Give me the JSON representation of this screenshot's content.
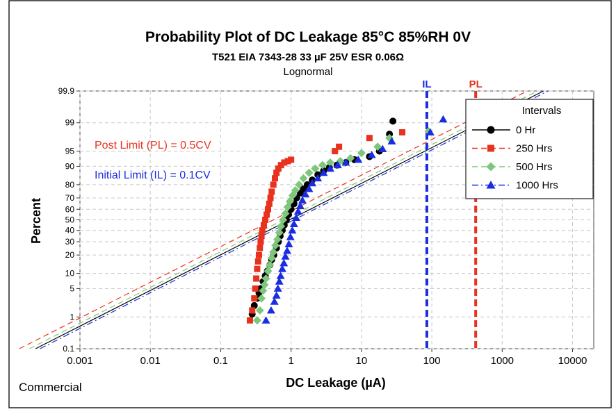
{
  "chart_data": {
    "type": "scatter",
    "title": "Probability Plot of DC Leakage 85°C 85%RH 0V",
    "subtitle": "T521 EIA 7343-28 33 µF 25V ESR 0.06Ω",
    "distribution": "Lognormal",
    "xlabel": "DC Leakage (µA)",
    "ylabel": "Percent",
    "x_scale": "log",
    "y_scale": "probability (normal)",
    "xlim": [
      0.001,
      20000
    ],
    "ylim": [
      0.1,
      99.9
    ],
    "x_ticks": [
      0.001,
      0.01,
      0.1,
      1,
      10,
      100,
      1000,
      10000
    ],
    "x_tick_labels": [
      "0.001",
      "0.01",
      "0.1",
      "1",
      "10",
      "100",
      "1000",
      "10000"
    ],
    "y_ticks": [
      0.1,
      1,
      5,
      10,
      20,
      30,
      40,
      50,
      60,
      70,
      80,
      90,
      95,
      99,
      99.9
    ],
    "y_tick_labels": [
      "0.1",
      "1",
      "5",
      "10",
      "20",
      "30",
      "40",
      "50",
      "60",
      "70",
      "80",
      "90",
      "95",
      "99",
      "99.9"
    ],
    "grid": true,
    "legend_title": "Intervals",
    "legend_position": "top-right",
    "series": [
      {
        "name": "0 Hr",
        "color": "#000000",
        "marker": "circle",
        "line": "solid",
        "fit": {
          "median": 0.95,
          "sigma": 1.17
        },
        "points": [
          [
            0.28,
            1.2
          ],
          [
            0.3,
            2
          ],
          [
            0.33,
            3
          ],
          [
            0.35,
            4
          ],
          [
            0.37,
            5
          ],
          [
            0.4,
            7
          ],
          [
            0.43,
            9
          ],
          [
            0.46,
            11
          ],
          [
            0.5,
            14
          ],
          [
            0.53,
            17
          ],
          [
            0.57,
            20
          ],
          [
            0.62,
            25
          ],
          [
            0.66,
            30
          ],
          [
            0.7,
            35
          ],
          [
            0.75,
            40
          ],
          [
            0.8,
            45
          ],
          [
            0.86,
            50
          ],
          [
            0.92,
            55
          ],
          [
            1.0,
            60
          ],
          [
            1.1,
            65
          ],
          [
            1.2,
            70
          ],
          [
            1.35,
            74
          ],
          [
            1.5,
            77
          ],
          [
            1.7,
            80
          ],
          [
            2.0,
            83
          ],
          [
            2.4,
            86
          ],
          [
            2.9,
            88
          ],
          [
            3.5,
            89.5
          ],
          [
            4.5,
            90.5
          ],
          [
            6,
            91.5
          ],
          [
            8,
            92.5
          ],
          [
            13,
            93.5
          ],
          [
            18,
            95
          ],
          [
            25,
            98
          ],
          [
            28,
            99.1
          ]
        ]
      },
      {
        "name": "250 Hrs",
        "color": "#e8321e",
        "marker": "square",
        "line": "dashed",
        "fit": {
          "median": 0.56,
          "sigma": 1.17
        },
        "points": [
          [
            0.26,
            0.8
          ],
          [
            0.28,
            1.5
          ],
          [
            0.3,
            3
          ],
          [
            0.31,
            5
          ],
          [
            0.32,
            8
          ],
          [
            0.33,
            12
          ],
          [
            0.34,
            16
          ],
          [
            0.35,
            20
          ],
          [
            0.36,
            25
          ],
          [
            0.37,
            30
          ],
          [
            0.38,
            35
          ],
          [
            0.39,
            40
          ],
          [
            0.41,
            45
          ],
          [
            0.43,
            50
          ],
          [
            0.45,
            55
          ],
          [
            0.47,
            60
          ],
          [
            0.49,
            65
          ],
          [
            0.51,
            70
          ],
          [
            0.53,
            75
          ],
          [
            0.56,
            80
          ],
          [
            0.59,
            84
          ],
          [
            0.62,
            87
          ],
          [
            0.66,
            89
          ],
          [
            0.72,
            90.5
          ],
          [
            0.8,
            91.5
          ],
          [
            0.9,
            92
          ],
          [
            1.0,
            92.5
          ],
          [
            4.2,
            95
          ],
          [
            4.8,
            96
          ],
          [
            13,
            97.5
          ],
          [
            38,
            98.2
          ]
        ]
      },
      {
        "name": "500 Hrs",
        "color": "#7dc67a",
        "marker": "diamond",
        "line": "dashed",
        "fit": {
          "median": 0.78,
          "sigma": 1.17
        },
        "points": [
          [
            0.33,
            0.8
          ],
          [
            0.36,
            1.5
          ],
          [
            0.38,
            3
          ],
          [
            0.4,
            4.5
          ],
          [
            0.42,
            6
          ],
          [
            0.44,
            8
          ],
          [
            0.47,
            11
          ],
          [
            0.5,
            14
          ],
          [
            0.53,
            18
          ],
          [
            0.56,
            22
          ],
          [
            0.6,
            27
          ],
          [
            0.64,
            32
          ],
          [
            0.68,
            38
          ],
          [
            0.72,
            44
          ],
          [
            0.77,
            50
          ],
          [
            0.83,
            56
          ],
          [
            0.89,
            62
          ],
          [
            0.96,
            67
          ],
          [
            1.05,
            72
          ],
          [
            1.15,
            76
          ],
          [
            1.3,
            80
          ],
          [
            1.5,
            84
          ],
          [
            1.8,
            87
          ],
          [
            2.2,
            89
          ],
          [
            2.8,
            90.5
          ],
          [
            3.6,
            91.5
          ],
          [
            5,
            92
          ],
          [
            7,
            93
          ],
          [
            10,
            94.5
          ],
          [
            17,
            96
          ],
          [
            25,
            97.5
          ],
          [
            90,
            98.3
          ]
        ]
      },
      {
        "name": "1000 Hrs",
        "color": "#1a2ee0",
        "marker": "triangle",
        "line": "dashdot",
        "fit": {
          "median": 1.1,
          "sigma": 1.17
        },
        "points": [
          [
            0.44,
            0.8
          ],
          [
            0.52,
            1.5
          ],
          [
            0.58,
            2.5
          ],
          [
            0.62,
            3.5
          ],
          [
            0.65,
            5
          ],
          [
            0.68,
            7
          ],
          [
            0.71,
            9
          ],
          [
            0.75,
            12
          ],
          [
            0.79,
            15
          ],
          [
            0.83,
            19
          ],
          [
            0.88,
            23
          ],
          [
            0.93,
            28
          ],
          [
            0.98,
            34
          ],
          [
            1.04,
            40
          ],
          [
            1.1,
            46
          ],
          [
            1.18,
            52
          ],
          [
            1.26,
            58
          ],
          [
            1.35,
            63
          ],
          [
            1.45,
            68
          ],
          [
            1.6,
            73
          ],
          [
            1.8,
            77
          ],
          [
            2.0,
            81
          ],
          [
            2.4,
            84
          ],
          [
            2.9,
            87
          ],
          [
            3.6,
            89
          ],
          [
            4.6,
            90.5
          ],
          [
            6,
            91.5
          ],
          [
            9,
            92.5
          ],
          [
            14,
            94
          ],
          [
            20,
            95.5
          ],
          [
            27,
            97
          ],
          [
            95,
            98.2
          ],
          [
            145,
            99.2
          ]
        ]
      }
    ],
    "reference_lines": [
      {
        "label": "IL",
        "x": 85,
        "color": "#1a2ee0"
      },
      {
        "label": "PL",
        "x": 420,
        "color": "#e8321e"
      }
    ],
    "annotations": [
      {
        "text": "Post Limit (PL) = 0.5CV",
        "color": "#e8321e"
      },
      {
        "text": "Initial Limit (IL) = 0.1CV",
        "color": "#1a2ee0"
      }
    ],
    "corner_label": "Commercial"
  }
}
